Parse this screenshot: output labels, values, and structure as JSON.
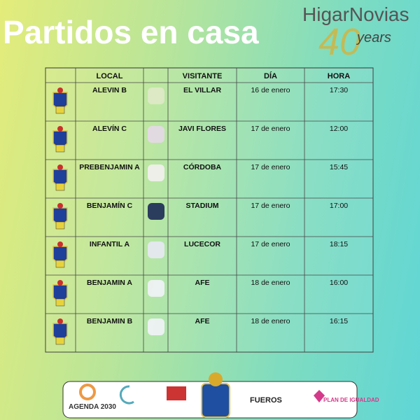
{
  "header": {
    "title": "Partidos en casa",
    "brand": "HigarNovias",
    "brand_number": "40",
    "brand_sub": "years"
  },
  "table": {
    "columns": [
      "LOCAL",
      "VISITANTE",
      "DÍA",
      "HORA"
    ],
    "rows": [
      [
        "ALEVIN B",
        "EL VILLAR",
        "16 de enero",
        "17:30"
      ],
      [
        "ALEVÍN C",
        "JAVI FLORES",
        "17 de enero",
        "12:00"
      ],
      [
        "PREBENJAMIN A",
        "CÓRDOBA",
        "17 de enero",
        "15:45"
      ],
      [
        "BENJAMÍN C",
        "STADIUM",
        "17 de enero",
        "17:00"
      ],
      [
        "INFANTIL A",
        "LUCECOR",
        "17 de enero",
        "18:15"
      ],
      [
        "BENJAMIN A",
        "AFE",
        "18 de enero",
        "16:00"
      ],
      [
        "BENJAMIN B",
        "AFE",
        "18 de enero",
        "16:15"
      ]
    ]
  },
  "footer": {
    "sponsors": [
      "AGENDA 2030",
      "FUEROS",
      "PLAN DE IGUALDAD"
    ]
  }
}
